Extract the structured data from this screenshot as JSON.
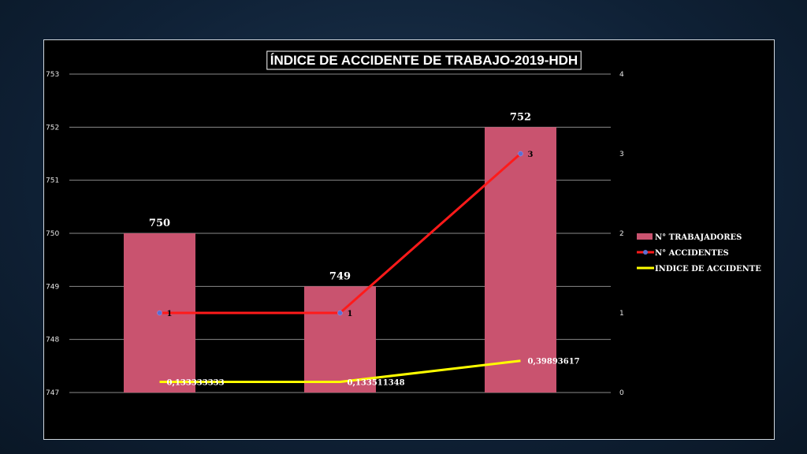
{
  "chart_data": {
    "type": "bar",
    "title": "ÍNDICE DE ACCIDENTE DE TRABAJO-2019-HDH",
    "categories": [
      "",
      "",
      ""
    ],
    "y_left": {
      "min": 747,
      "max": 753,
      "ticks": [
        "747",
        "748",
        "749",
        "750",
        "751",
        "752",
        "753"
      ]
    },
    "y_right": {
      "min": 0,
      "max": 4,
      "ticks": [
        "0",
        "1",
        "2",
        "3",
        "4"
      ]
    },
    "grid": true,
    "legend_position": "right",
    "series": [
      {
        "name": "N° TRABAJADORES",
        "kind": "bar",
        "axis": "left",
        "color": "#c9536f",
        "values": [
          750,
          749,
          752
        ],
        "labels": [
          "750",
          "749",
          "752"
        ]
      },
      {
        "name": "N° ACCIDENTES",
        "kind": "line",
        "axis": "right",
        "color": "#ff1a1a",
        "marker_color": "#5b6fd1",
        "values": [
          1,
          1,
          3
        ],
        "labels": [
          "1",
          "1",
          "3"
        ]
      },
      {
        "name": "INDICE DE ACCIDENTE",
        "kind": "line",
        "axis": "right",
        "color": "#ffff00",
        "values": [
          0.133333333,
          0.133511348,
          0.39893617
        ],
        "labels": [
          "0,133333333",
          "0,133511348",
          "0,39893617"
        ]
      }
    ]
  }
}
